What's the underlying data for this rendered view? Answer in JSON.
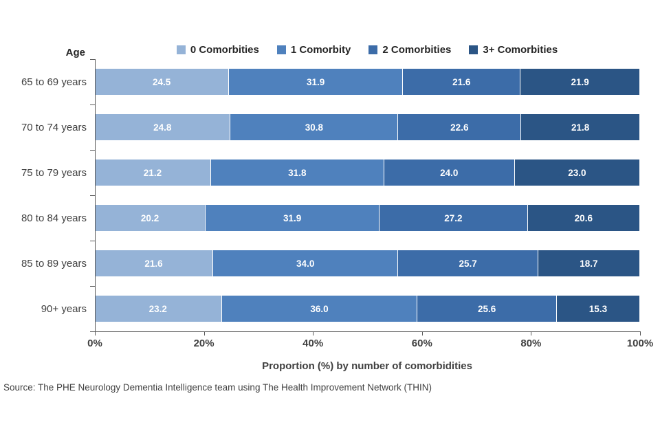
{
  "axis": {
    "y_title": "Age",
    "x_title": "Proportion (%) by number of comorbidities",
    "x_ticks": [
      "0%",
      "20%",
      "40%",
      "60%",
      "80%",
      "100%"
    ]
  },
  "source": "Source: The PHE Neurology Dementia Intelligence team using The Health Improvement Network (THIN)",
  "colors": {
    "series0": "#95b3d7",
    "series1": "#4f81bd",
    "series2": "#3c6ca8",
    "series3": "#2b5585",
    "axis": "#595959",
    "value_label": "#ffffff"
  },
  "chart_data": {
    "type": "bar",
    "orientation": "horizontal",
    "stacked": true,
    "title": "",
    "xlabel": "Proportion (%) by number of comorbidities",
    "ylabel": "Age",
    "xlim": [
      0,
      100
    ],
    "grid": false,
    "legend_position": "top",
    "categories": [
      "65 to 69 years",
      "70 to 74 years",
      "75 to 79 years",
      "80 to 84 years",
      "85 to 89 years",
      "90+ years"
    ],
    "series": [
      {
        "name": "0 Comorbities",
        "color": "#95b3d7",
        "values": [
          24.5,
          24.8,
          21.2,
          20.2,
          21.6,
          23.2
        ]
      },
      {
        "name": "1 Comorbity",
        "color": "#4f81bd",
        "values": [
          31.9,
          30.8,
          31.8,
          31.9,
          34.0,
          36.0
        ]
      },
      {
        "name": "2 Comorbities",
        "color": "#3c6ca8",
        "values": [
          21.6,
          22.6,
          24.0,
          27.2,
          25.7,
          25.6
        ]
      },
      {
        "name": "3+ Comorbities",
        "color": "#2b5585",
        "values": [
          21.9,
          21.8,
          23.0,
          20.6,
          18.7,
          15.3
        ]
      }
    ]
  }
}
